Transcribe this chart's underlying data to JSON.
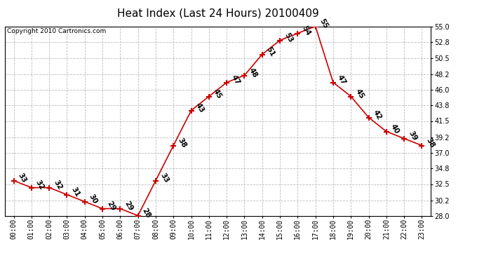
{
  "title": "Heat Index (Last 24 Hours) 20100409",
  "copyright_text": "Copyright 2010 Cartronics.com",
  "hours": [
    0,
    1,
    2,
    3,
    4,
    5,
    6,
    7,
    8,
    9,
    10,
    11,
    12,
    13,
    14,
    15,
    16,
    17,
    18,
    19,
    20,
    21,
    22,
    23
  ],
  "values": [
    33,
    32,
    32,
    31,
    30,
    29,
    29,
    28,
    33,
    38,
    43,
    45,
    47,
    48,
    51,
    53,
    54,
    55,
    47,
    45,
    42,
    40,
    39,
    38
  ],
  "ylim": [
    28.0,
    55.0
  ],
  "yticks": [
    28.0,
    30.2,
    32.5,
    34.8,
    37.0,
    39.2,
    41.5,
    43.8,
    46.0,
    48.2,
    50.5,
    52.8,
    55.0
  ],
  "ytick_labels": [
    "28.0",
    "30.2",
    "32.5",
    "34.8",
    "37.0",
    "39.2",
    "41.5",
    "43.8",
    "46.0",
    "48.2",
    "50.5",
    "52.8",
    "55.0"
  ],
  "line_color": "#cc0000",
  "marker_color": "#cc0000",
  "bg_color": "#ffffff",
  "grid_color": "#bbbbbb",
  "title_fontsize": 11,
  "tick_fontsize": 7,
  "annot_fontsize": 7.5,
  "copyright_fontsize": 6.5
}
